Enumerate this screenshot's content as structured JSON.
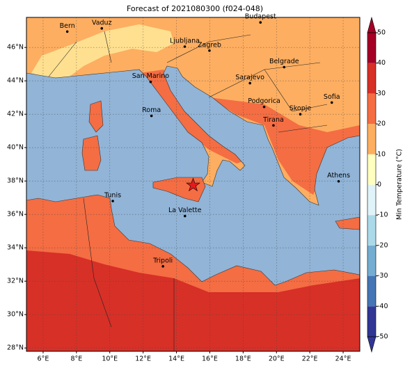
{
  "title": "Forecast of 2021080300 (f024-048)",
  "map": {
    "xlim": [
      5,
      25
    ],
    "ylim": [
      27.8,
      47.8
    ],
    "grid": true,
    "xticks": [
      {
        "value": 6,
        "label": "6°E"
      },
      {
        "value": 8,
        "label": "8°E"
      },
      {
        "value": 10,
        "label": "10°E"
      },
      {
        "value": 12,
        "label": "12°E"
      },
      {
        "value": 14,
        "label": "14°E"
      },
      {
        "value": 16,
        "label": "16°E"
      },
      {
        "value": 18,
        "label": "18°E"
      },
      {
        "value": 20,
        "label": "20°E"
      },
      {
        "value": 22,
        "label": "22°E"
      },
      {
        "value": 24,
        "label": "24°E"
      }
    ],
    "yticks": [
      {
        "value": 28,
        "label": "28°N"
      },
      {
        "value": 30,
        "label": "30°N"
      },
      {
        "value": 32,
        "label": "32°N"
      },
      {
        "value": 34,
        "label": "34°N"
      },
      {
        "value": 36,
        "label": "36°N"
      },
      {
        "value": 38,
        "label": "38°N"
      },
      {
        "value": 40,
        "label": "40°N"
      },
      {
        "value": 42,
        "label": "42°N"
      },
      {
        "value": 44,
        "label": "44°N"
      },
      {
        "value": 46,
        "label": "46°N"
      }
    ],
    "cities": [
      {
        "name": "Bern",
        "lon": 7.45,
        "lat": 46.95
      },
      {
        "name": "Vaduz",
        "lon": 9.52,
        "lat": 47.14
      },
      {
        "name": "Budapest",
        "lon": 19.04,
        "lat": 47.5
      },
      {
        "name": "Ljubljana",
        "lon": 14.5,
        "lat": 46.05
      },
      {
        "name": "Zagreb",
        "lon": 15.98,
        "lat": 45.81
      },
      {
        "name": "Belgrade",
        "lon": 20.46,
        "lat": 44.82
      },
      {
        "name": "San Marino",
        "lon": 12.45,
        "lat": 43.94
      },
      {
        "name": "Sarajevo",
        "lon": 18.41,
        "lat": 43.86
      },
      {
        "name": "Sofia",
        "lon": 23.32,
        "lat": 42.7
      },
      {
        "name": "Roma",
        "lon": 12.5,
        "lat": 41.9
      },
      {
        "name": "Podgorica",
        "lon": 19.26,
        "lat": 42.44
      },
      {
        "name": "Skopje",
        "lon": 21.43,
        "lat": 42.0
      },
      {
        "name": "Tirana",
        "lon": 19.82,
        "lat": 41.33
      },
      {
        "name": "Athens",
        "lon": 23.73,
        "lat": 37.98
      },
      {
        "name": "Tunis",
        "lon": 10.18,
        "lat": 36.8
      },
      {
        "name": "La Valette",
        "lon": 14.51,
        "lat": 35.9
      },
      {
        "name": "Tripoli",
        "lon": 13.19,
        "lat": 32.89
      }
    ],
    "marker": {
      "lon": 15.0,
      "lat": 37.75,
      "color": "#e41a1c"
    }
  },
  "colorbar": {
    "label": "Min Temperature (°C)",
    "lim": [
      -50,
      50
    ],
    "ticks": [
      -50,
      -40,
      -30,
      -20,
      -10,
      0,
      10,
      20,
      30,
      40,
      50
    ],
    "colors": [
      "#313695",
      "#4575b4",
      "#74add1",
      "#abd9e9",
      "#e0f3f8",
      "#ffffbf",
      "#fdae61",
      "#f46d43",
      "#d73027",
      "#a50026"
    ]
  }
}
